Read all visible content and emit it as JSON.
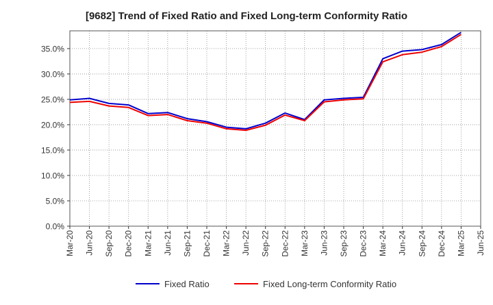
{
  "chart_data": {
    "type": "line",
    "title": "[9682]  Trend of Fixed Ratio and Fixed Long-term Conformity Ratio",
    "xlabel": "",
    "ylabel": "",
    "categories": [
      "Mar-20",
      "Jun-20",
      "Sep-20",
      "Dec-20",
      "Mar-21",
      "Jun-21",
      "Sep-21",
      "Dec-21",
      "Mar-22",
      "Jun-22",
      "Sep-22",
      "Dec-22",
      "Mar-23",
      "Jun-23",
      "Sep-23",
      "Dec-23",
      "Mar-24",
      "Jun-24",
      "Sep-24",
      "Dec-24",
      "Mar-25",
      "Jun-25"
    ],
    "y_ticks": [
      "0.0%",
      "5.0%",
      "10.0%",
      "15.0%",
      "20.0%",
      "25.0%",
      "30.0%",
      "35.0%"
    ],
    "ylim": [
      0,
      38.5
    ],
    "grid": true,
    "legend_position": "bottom",
    "series": [
      {
        "name": "Fixed Ratio",
        "color": "#0000cc",
        "values": [
          24.9,
          25.2,
          24.2,
          23.9,
          22.2,
          22.4,
          21.2,
          20.6,
          19.5,
          19.2,
          20.3,
          22.3,
          21.0,
          24.9,
          25.2,
          25.4,
          33.0,
          34.5,
          34.8,
          35.8,
          38.2,
          null
        ]
      },
      {
        "name": "Fixed Long-term Conformity Ratio",
        "color": "#ee0000",
        "values": [
          24.4,
          24.6,
          23.7,
          23.4,
          21.8,
          22.0,
          20.8,
          20.3,
          19.2,
          18.9,
          19.9,
          21.9,
          20.8,
          24.5,
          24.9,
          25.1,
          32.4,
          33.8,
          34.3,
          35.4,
          37.8,
          null
        ]
      }
    ]
  }
}
